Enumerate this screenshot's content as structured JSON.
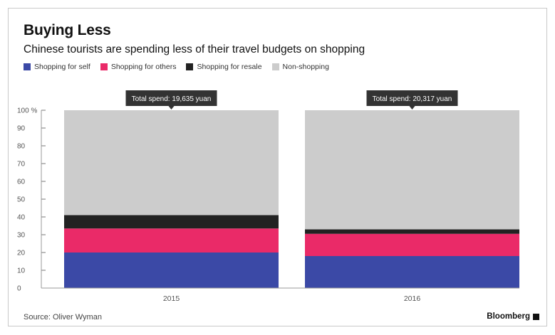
{
  "header": {
    "title": "Buying Less",
    "subtitle": "Chinese tourists are spending less of their travel budgets on shopping"
  },
  "footer": {
    "source": "Source: Oliver Wyman",
    "brand": "Bloomberg"
  },
  "colors": {
    "shopping_self": "#3b49a6",
    "shopping_others": "#ea2a68",
    "shopping_resale": "#222222",
    "non_shopping": "#cccccc",
    "callout_bg": "#333333"
  },
  "chart_data": {
    "type": "bar",
    "stacked": true,
    "categories": [
      "2015",
      "2016"
    ],
    "series": [
      {
        "name": "Shopping for self",
        "values": [
          20,
          18
        ]
      },
      {
        "name": "Shopping for others",
        "values": [
          13.5,
          12.5
        ]
      },
      {
        "name": "Shopping for resale",
        "values": [
          7.5,
          2.5
        ]
      },
      {
        "name": "Non-shopping",
        "values": [
          59,
          67
        ]
      }
    ],
    "annotations": [
      "Total spend: 19,635 yuan",
      "Total spend: 20,317 yuan"
    ],
    "ylim": [
      0,
      100
    ],
    "yticks": [
      "0",
      "10",
      "20",
      "30",
      "40",
      "50",
      "60",
      "70",
      "80",
      "90",
      "100 %"
    ],
    "legend_position": "top-left",
    "grid": false
  }
}
